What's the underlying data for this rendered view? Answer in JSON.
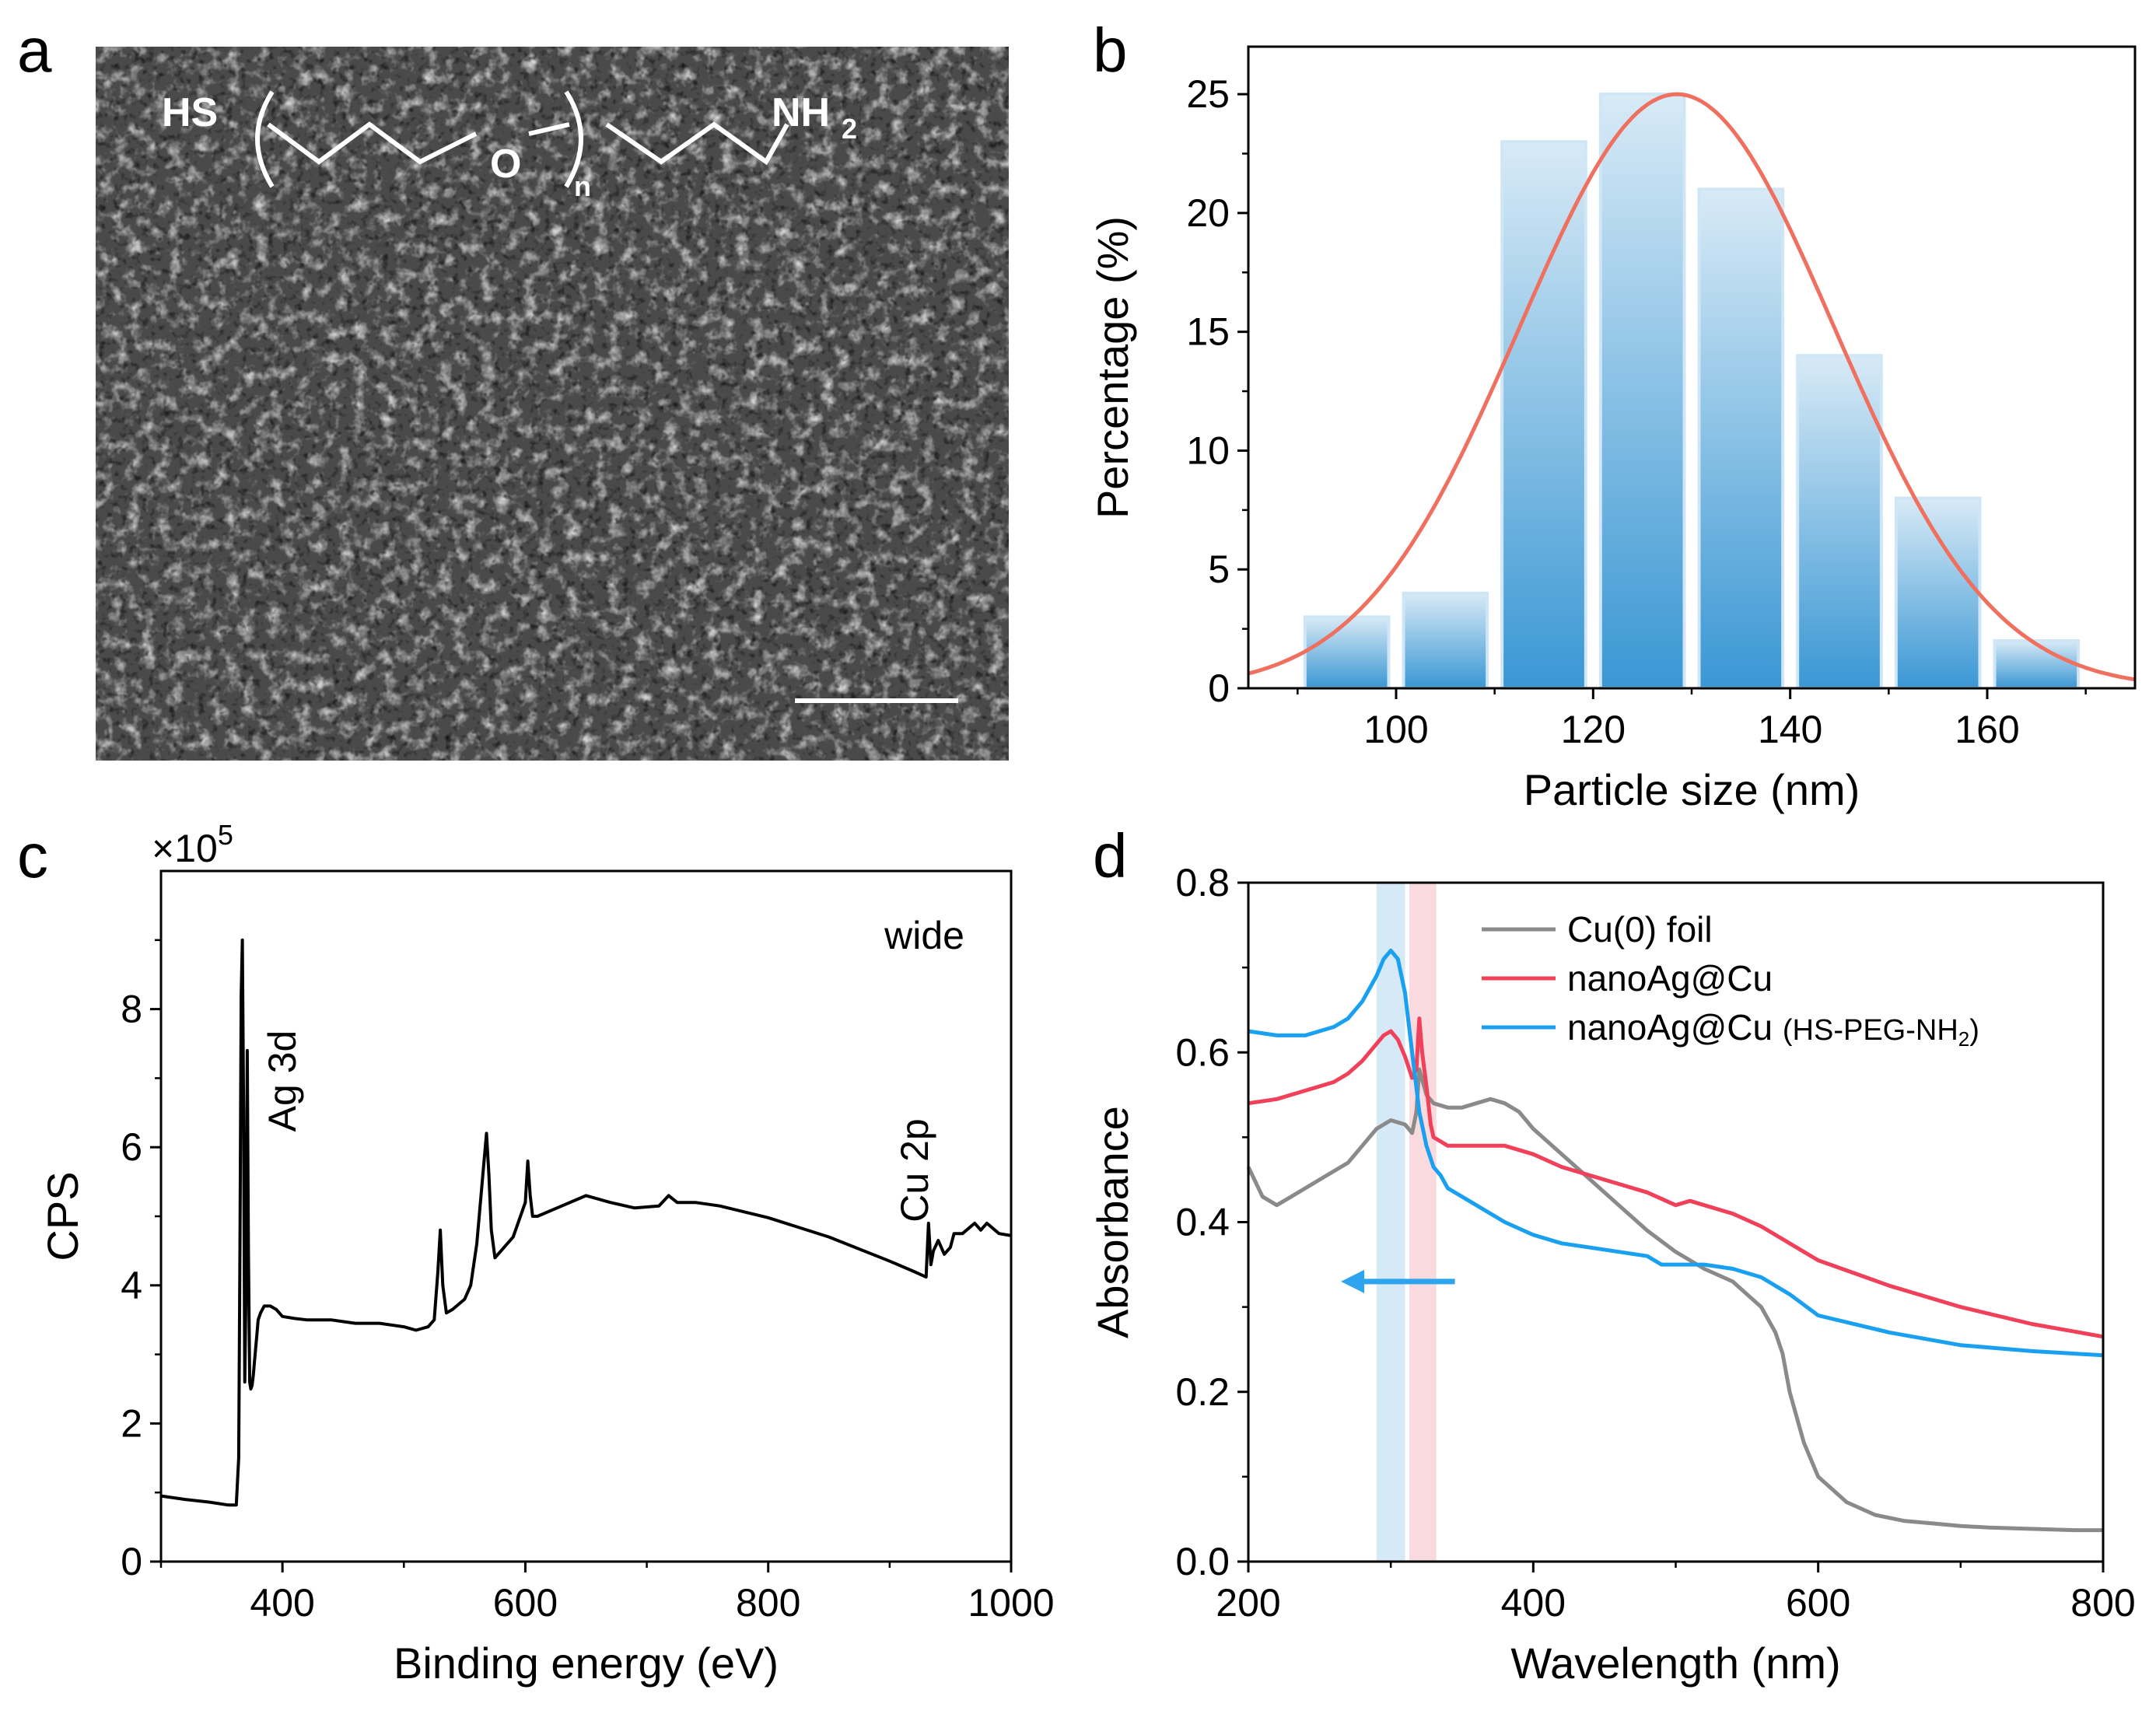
{
  "panels": {
    "a": {
      "letter": "a",
      "formula": {
        "hs": "HS",
        "o": "O",
        "n": "n",
        "nh": "NH",
        "sub2": "2"
      }
    },
    "b": {
      "letter": "b",
      "chart_data": {
        "type": "bar",
        "categories": [
          95,
          105,
          115,
          125,
          135,
          145,
          155,
          165
        ],
        "values": [
          3,
          4,
          23,
          25,
          21,
          14,
          8,
          2
        ],
        "bin_width": 8.5,
        "fit": {
          "type": "gaussian",
          "mean": 128.5,
          "sigma": 16.0,
          "amplitude": 25.0
        },
        "xlabel": "Particle size (nm)",
        "ylabel": "Percentage (%)",
        "xlim": [
          85,
          175
        ],
        "ylim": [
          0,
          27
        ],
        "xticks": [
          100,
          120,
          140,
          160
        ],
        "yticks": [
          0,
          5,
          10,
          15,
          20,
          25
        ],
        "colors": {
          "bar": "#3a97d4",
          "fit": "#f07060"
        }
      }
    },
    "c": {
      "letter": "c",
      "chart_data": {
        "type": "line",
        "series": [
          {
            "x": [
              300,
              320,
              340,
              355,
              362,
              364,
              365,
              366,
              367,
              368,
              369,
              370,
              371,
              372,
              373,
              374,
              375,
              376,
              377,
              378,
              379,
              380,
              382,
              385,
              390,
              395,
              400,
              410,
              420,
              440,
              460,
              480,
              500,
              510,
              520,
              525,
              528,
              530,
              532,
              535,
              540,
              550,
              555,
              560,
              565,
              568,
              570,
              572,
              575,
              580,
              590,
              600,
              602,
              604,
              606,
              610,
              630,
              650,
              670,
              690,
              710,
              718,
              725,
              740,
              760,
              800,
              850,
              900,
              920,
              930,
              932,
              934,
              936,
              940,
              945,
              950,
              953,
              960,
              970,
              975,
              980,
              990,
              1000
            ],
            "y": [
              0.95,
              0.9,
              0.86,
              0.82,
              0.82,
              1.5,
              4.5,
              8.2,
              9.0,
              6.5,
              2.6,
              4.0,
              7.4,
              4.5,
              2.6,
              2.5,
              2.55,
              2.7,
              2.9,
              3.1,
              3.3,
              3.5,
              3.6,
              3.7,
              3.7,
              3.65,
              3.55,
              3.52,
              3.5,
              3.5,
              3.45,
              3.45,
              3.4,
              3.35,
              3.4,
              3.5,
              4.2,
              4.8,
              4.0,
              3.6,
              3.65,
              3.8,
              4.0,
              4.6,
              5.6,
              6.2,
              5.6,
              4.8,
              4.4,
              4.5,
              4.7,
              5.2,
              5.8,
              5.3,
              5.0,
              5.0,
              5.15,
              5.3,
              5.2,
              5.12,
              5.15,
              5.3,
              5.2,
              5.2,
              5.15,
              4.98,
              4.7,
              4.35,
              4.2,
              4.12,
              4.9,
              4.3,
              4.5,
              4.65,
              4.45,
              4.55,
              4.75,
              4.75,
              4.9,
              4.8,
              4.9,
              4.75,
              4.72
            ]
          }
        ],
        "xlabel": "Binding energy (eV)",
        "ylabel": "CPS",
        "multiplier": {
          "base": "×10",
          "exp": "5"
        },
        "xlim": [
          300,
          1000
        ],
        "ylim": [
          0,
          10
        ],
        "xticks": [
          400,
          600,
          800,
          1000
        ],
        "yticks": [
          0,
          2,
          4,
          6,
          8
        ],
        "annotations": {
          "corner": "wide",
          "ag": "Ag 3d",
          "cu": "Cu 2p"
        },
        "colors": {
          "line": "#000000"
        }
      }
    },
    "d": {
      "letter": "d",
      "chart_data": {
        "type": "line",
        "series": [
          {
            "name": "Cu(0) foil",
            "color": "#8a8a8a",
            "x": [
              200,
              210,
              220,
              230,
              240,
              250,
              260,
              270,
              280,
              290,
              300,
              310,
              315,
              318,
              320,
              325,
              330,
              340,
              350,
              360,
              370,
              380,
              390,
              400,
              420,
              440,
              460,
              480,
              500,
              520,
              540,
              550,
              560,
              570,
              575,
              580,
              590,
              600,
              620,
              640,
              660,
              680,
              700,
              720,
              740,
              760,
              780,
              800
            ],
            "y": [
              0.465,
              0.43,
              0.42,
              0.43,
              0.44,
              0.45,
              0.46,
              0.47,
              0.49,
              0.51,
              0.52,
              0.515,
              0.505,
              0.53,
              0.58,
              0.55,
              0.54,
              0.535,
              0.535,
              0.54,
              0.545,
              0.54,
              0.53,
              0.51,
              0.48,
              0.45,
              0.42,
              0.39,
              0.365,
              0.345,
              0.33,
              0.315,
              0.3,
              0.27,
              0.245,
              0.2,
              0.14,
              0.1,
              0.07,
              0.055,
              0.048,
              0.045,
              0.042,
              0.04,
              0.039,
              0.038,
              0.037,
              0.037
            ]
          },
          {
            "name": "nanoAg@Cu",
            "color": "#f0405a",
            "x": [
              200,
              220,
              240,
              260,
              270,
              280,
              290,
              295,
              300,
              305,
              310,
              315,
              318,
              320,
              322,
              325,
              328,
              330,
              335,
              340,
              350,
              360,
              380,
              400,
              420,
              440,
              460,
              480,
              500,
              510,
              520,
              540,
              560,
              580,
              600,
              650,
              700,
              750,
              800
            ],
            "y": [
              0.54,
              0.545,
              0.555,
              0.565,
              0.575,
              0.59,
              0.61,
              0.62,
              0.625,
              0.615,
              0.595,
              0.57,
              0.58,
              0.64,
              0.6,
              0.56,
              0.515,
              0.5,
              0.495,
              0.49,
              0.49,
              0.49,
              0.49,
              0.48,
              0.465,
              0.455,
              0.445,
              0.435,
              0.42,
              0.425,
              0.42,
              0.41,
              0.395,
              0.375,
              0.355,
              0.325,
              0.3,
              0.28,
              0.265
            ]
          },
          {
            "name": "nanoAg@Cu (HS-PEG-NH₂)",
            "color": "#1aa0f0",
            "x": [
              200,
              220,
              240,
              260,
              270,
              280,
              290,
              295,
              300,
              305,
              310,
              315,
              320,
              325,
              330,
              335,
              340,
              350,
              360,
              380,
              400,
              420,
              440,
              460,
              480,
              490,
              500,
              520,
              540,
              560,
              580,
              600,
              650,
              700,
              750,
              800
            ],
            "y": [
              0.625,
              0.62,
              0.62,
              0.63,
              0.64,
              0.66,
              0.69,
              0.71,
              0.72,
              0.71,
              0.67,
              0.6,
              0.53,
              0.49,
              0.465,
              0.455,
              0.44,
              0.43,
              0.42,
              0.4,
              0.385,
              0.375,
              0.37,
              0.365,
              0.36,
              0.35,
              0.35,
              0.35,
              0.345,
              0.335,
              0.315,
              0.29,
              0.27,
              0.255,
              0.248,
              0.243
            ]
          }
        ],
        "bands": [
          {
            "x0": 290,
            "x1": 310,
            "color": "#cfe5f5"
          },
          {
            "x0": 313,
            "x1": 332,
            "color": "#f8d3d8"
          }
        ],
        "arrow": {
          "from": 345,
          "to": 265,
          "y": 0.33,
          "color": "#2ea3ee"
        },
        "xlabel": "Wavelength (nm)",
        "ylabel": "Absorbance",
        "xlim": [
          200,
          800
        ],
        "ylim": [
          0,
          0.8
        ],
        "xticks": [
          200,
          400,
          600,
          800
        ],
        "yticks": [
          0.0,
          0.2,
          0.4,
          0.6,
          0.8
        ],
        "legend": {
          "placement": "top-right",
          "items": [
            "Cu(0) foil",
            "nanoAg@Cu",
            "nanoAg@Cu "
          ],
          "peg_suffix": {
            "main": "(HS-PEG-NH",
            "sub": "2",
            "close": ")"
          }
        }
      }
    }
  }
}
